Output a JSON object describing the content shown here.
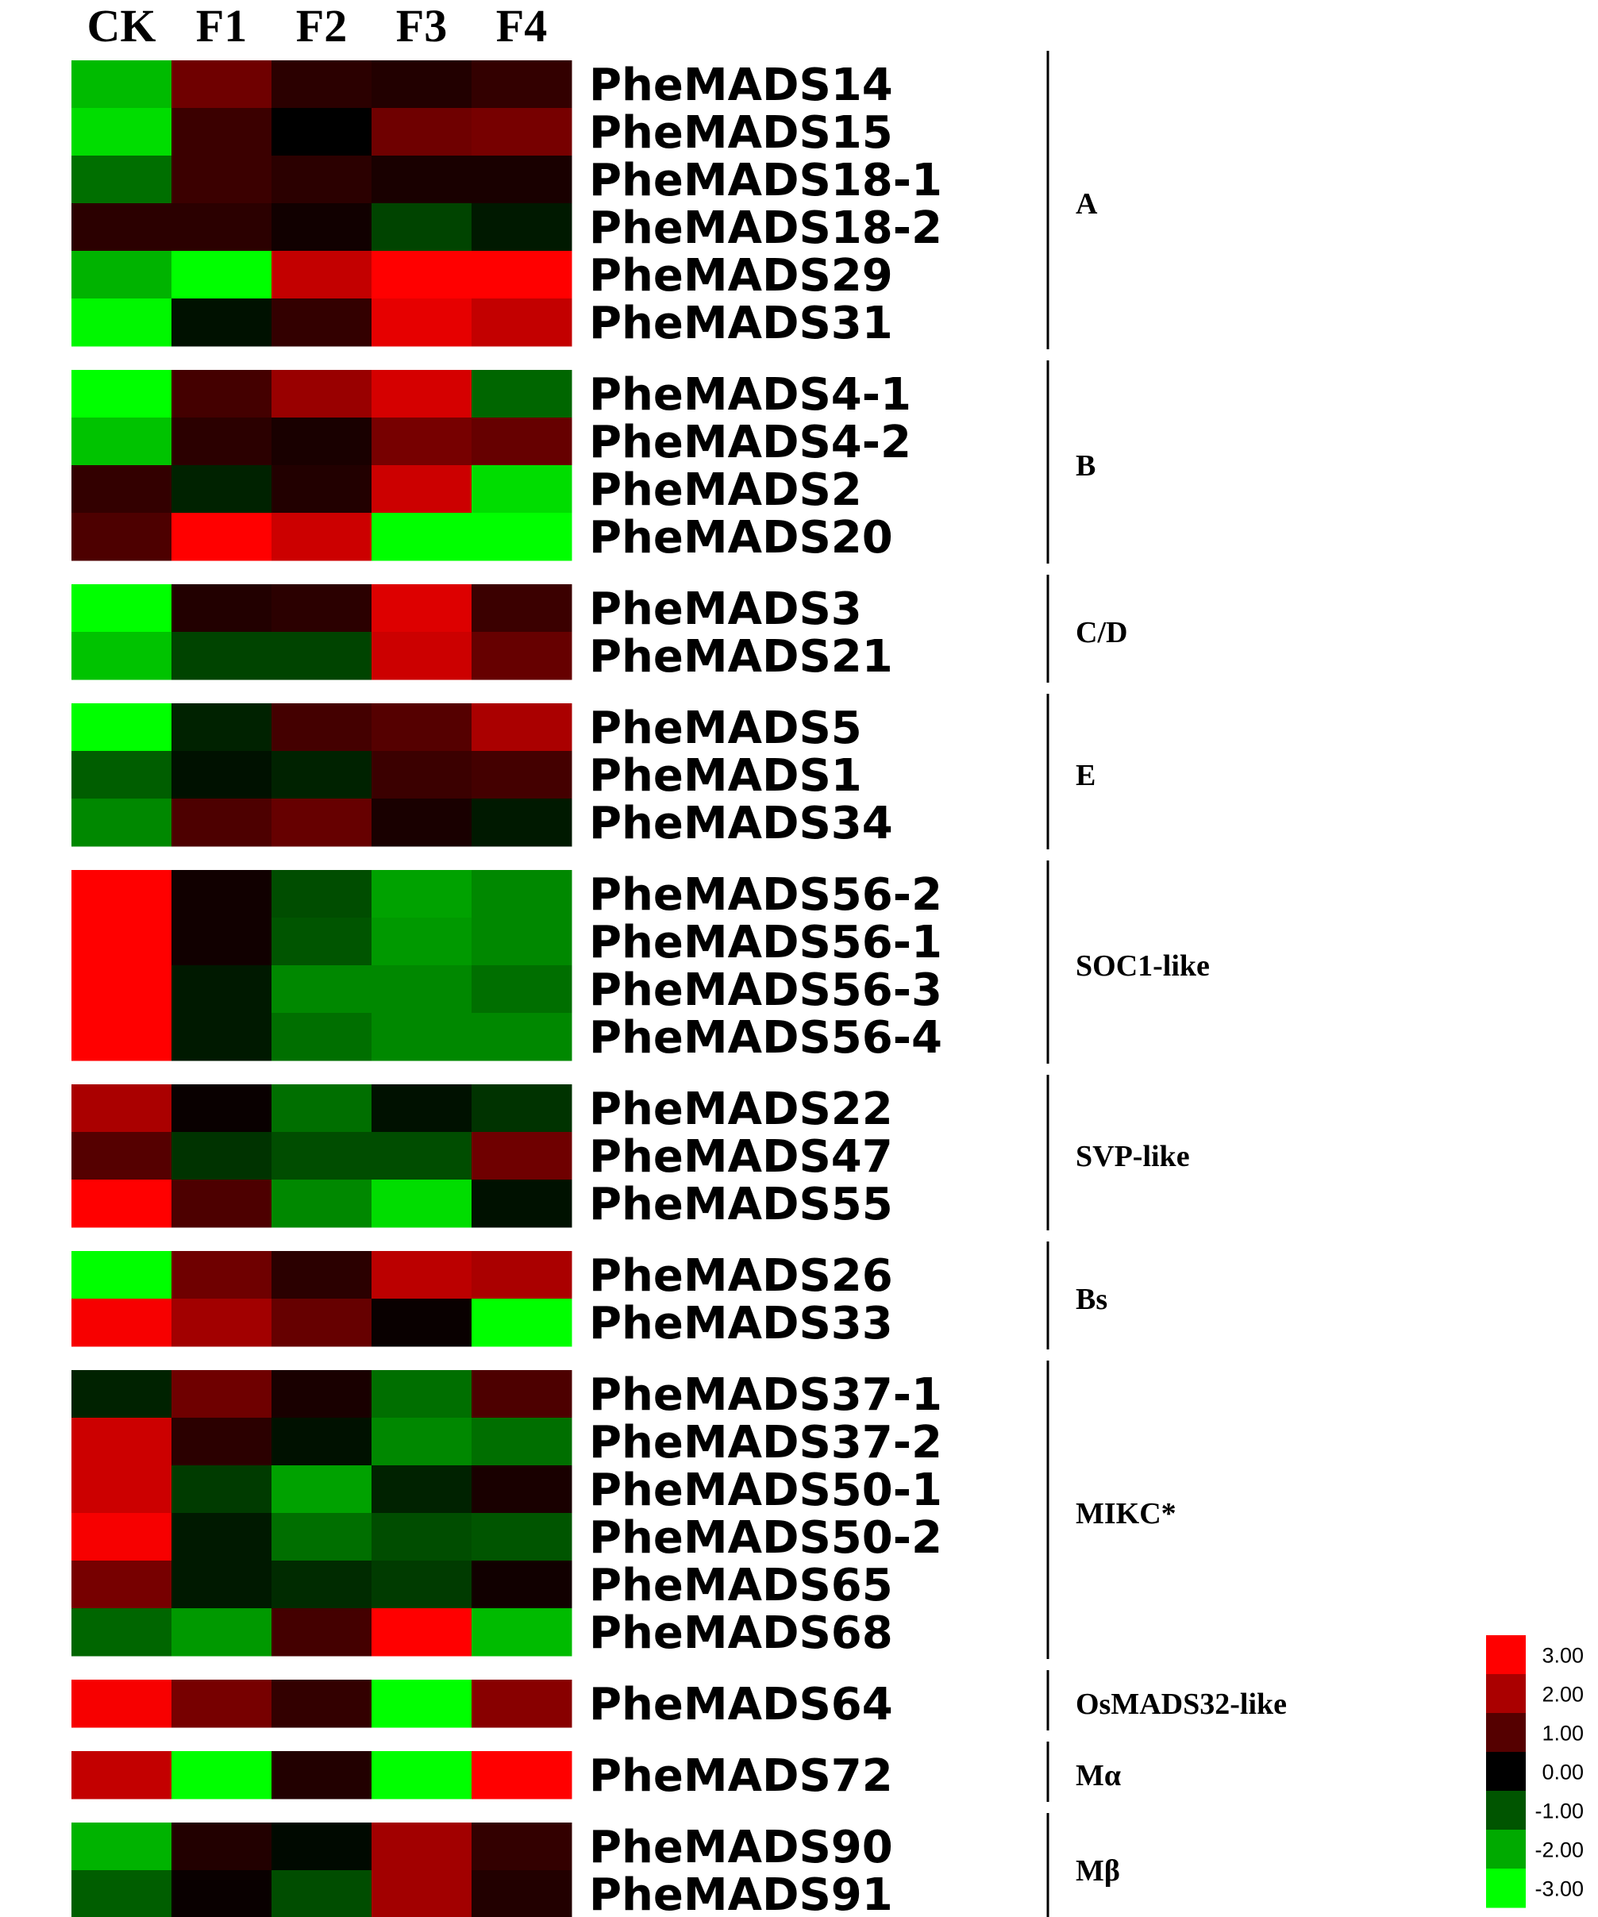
{
  "chart_data": {
    "type": "heatmap",
    "columns": [
      "CK",
      "F1",
      "F2",
      "F3",
      "F4"
    ],
    "color_scale": {
      "min": -3.0,
      "max": 3.0,
      "low_color": "#00ff00",
      "mid_color": "#000000",
      "high_color": "#ff0000",
      "ticks": [
        "3.00",
        "2.00",
        "1.00",
        "0.00",
        "-1.00",
        "-2.00",
        "-3.00"
      ]
    },
    "groups": [
      {
        "name": "A",
        "rows": [
          {
            "gene": "PheMADS14",
            "values": [
              -2.2,
              1.3,
              0.5,
              0.4,
              0.6
            ]
          },
          {
            "gene": "PheMADS15",
            "values": [
              -2.6,
              0.7,
              0.0,
              1.3,
              1.4
            ]
          },
          {
            "gene": "PheMADS18-1",
            "values": [
              -1.3,
              0.7,
              0.5,
              0.3,
              0.3
            ]
          },
          {
            "gene": "PheMADS18-2",
            "values": [
              0.5,
              0.5,
              0.2,
              -0.8,
              -0.3
            ]
          },
          {
            "gene": "PheMADS29",
            "values": [
              -2.1,
              -3.0,
              2.3,
              3.0,
              3.0
            ]
          },
          {
            "gene": "PheMADS31",
            "values": [
              -2.9,
              -0.2,
              0.6,
              2.7,
              2.3
            ]
          }
        ]
      },
      {
        "name": "B",
        "rows": [
          {
            "gene": "PheMADS4-1",
            "values": [
              -3.0,
              0.8,
              1.8,
              2.5,
              -1.2
            ]
          },
          {
            "gene": "PheMADS4-2",
            "values": [
              -2.3,
              0.5,
              0.3,
              1.4,
              1.2
            ]
          },
          {
            "gene": "PheMADS2",
            "values": [
              0.6,
              -0.4,
              0.4,
              2.4,
              -2.6
            ]
          },
          {
            "gene": "PheMADS20",
            "values": [
              0.9,
              3.0,
              2.4,
              -3.0,
              -3.0
            ]
          }
        ]
      },
      {
        "name": "C/D",
        "rows": [
          {
            "gene": "PheMADS3",
            "values": [
              -3.0,
              0.4,
              0.5,
              2.6,
              0.7
            ]
          },
          {
            "gene": "PheMADS21",
            "values": [
              -2.3,
              -0.8,
              -0.8,
              2.4,
              1.2
            ]
          }
        ]
      },
      {
        "name": "E",
        "rows": [
          {
            "gene": "PheMADS5",
            "values": [
              -3.0,
              -0.4,
              0.8,
              1.0,
              2.0
            ]
          },
          {
            "gene": "PheMADS1",
            "values": [
              -1.1,
              -0.2,
              -0.4,
              0.7,
              0.8
            ]
          },
          {
            "gene": "PheMADS34",
            "values": [
              -1.6,
              0.9,
              1.2,
              0.3,
              -0.3
            ]
          }
        ]
      },
      {
        "name": "SOC1-like",
        "rows": [
          {
            "gene": "PheMADS56-2",
            "values": [
              3.0,
              0.2,
              -0.9,
              -1.9,
              -1.6
            ]
          },
          {
            "gene": "PheMADS56-1",
            "values": [
              3.0,
              0.2,
              -1.0,
              -1.8,
              -1.6
            ]
          },
          {
            "gene": "PheMADS56-3",
            "values": [
              3.0,
              -0.3,
              -1.6,
              -1.6,
              -1.3
            ]
          },
          {
            "gene": "PheMADS56-4",
            "values": [
              3.0,
              -0.3,
              -1.3,
              -1.6,
              -1.6
            ]
          }
        ]
      },
      {
        "name": "SVP-like",
        "rows": [
          {
            "gene": "PheMADS22",
            "values": [
              2.0,
              0.1,
              -1.3,
              -0.2,
              -0.6
            ]
          },
          {
            "gene": "PheMADS47",
            "values": [
              1.0,
              -0.6,
              -0.9,
              -0.9,
              1.3
            ]
          },
          {
            "gene": "PheMADS55",
            "values": [
              3.0,
              0.9,
              -1.6,
              -2.6,
              -0.2
            ]
          }
        ]
      },
      {
        "name": "Bs",
        "rows": [
          {
            "gene": "PheMADS26",
            "values": [
              -3.0,
              1.3,
              0.5,
              2.2,
              2.0
            ]
          },
          {
            "gene": "PheMADS33",
            "values": [
              2.9,
              1.9,
              1.2,
              0.1,
              -3.0
            ]
          }
        ]
      },
      {
        "name": "MIKC*",
        "rows": [
          {
            "gene": "PheMADS37-1",
            "values": [
              -0.4,
              1.3,
              0.3,
              -1.3,
              0.9
            ]
          },
          {
            "gene": "PheMADS37-2",
            "values": [
              2.4,
              0.5,
              -0.2,
              -1.6,
              -1.3
            ]
          },
          {
            "gene": "PheMADS50-1",
            "values": [
              2.4,
              -0.7,
              -1.9,
              -0.4,
              0.3
            ]
          },
          {
            "gene": "PheMADS50-2",
            "values": [
              2.9,
              -0.3,
              -1.3,
              -0.9,
              -1.0
            ]
          },
          {
            "gene": "PheMADS65",
            "values": [
              1.4,
              -0.3,
              -0.5,
              -0.7,
              0.2
            ]
          },
          {
            "gene": "PheMADS68",
            "values": [
              -1.2,
              -1.8,
              0.8,
              3.0,
              -2.2
            ]
          }
        ]
      },
      {
        "name": "OsMADS32-like",
        "rows": [
          {
            "gene": "PheMADS64",
            "values": [
              2.9,
              1.4,
              0.6,
              -3.0,
              1.6
            ]
          }
        ]
      },
      {
        "name": "Mα",
        "rows": [
          {
            "gene": "PheMADS72",
            "values": [
              2.3,
              -3.0,
              0.4,
              -3.0,
              3.0
            ]
          }
        ]
      },
      {
        "name": "Mβ",
        "rows": [
          {
            "gene": "PheMADS90",
            "values": [
              -2.1,
              0.4,
              -0.1,
              1.9,
              0.6
            ]
          },
          {
            "gene": "PheMADS91",
            "values": [
              -1.1,
              0.1,
              -0.9,
              1.9,
              0.4
            ]
          }
        ]
      }
    ]
  }
}
